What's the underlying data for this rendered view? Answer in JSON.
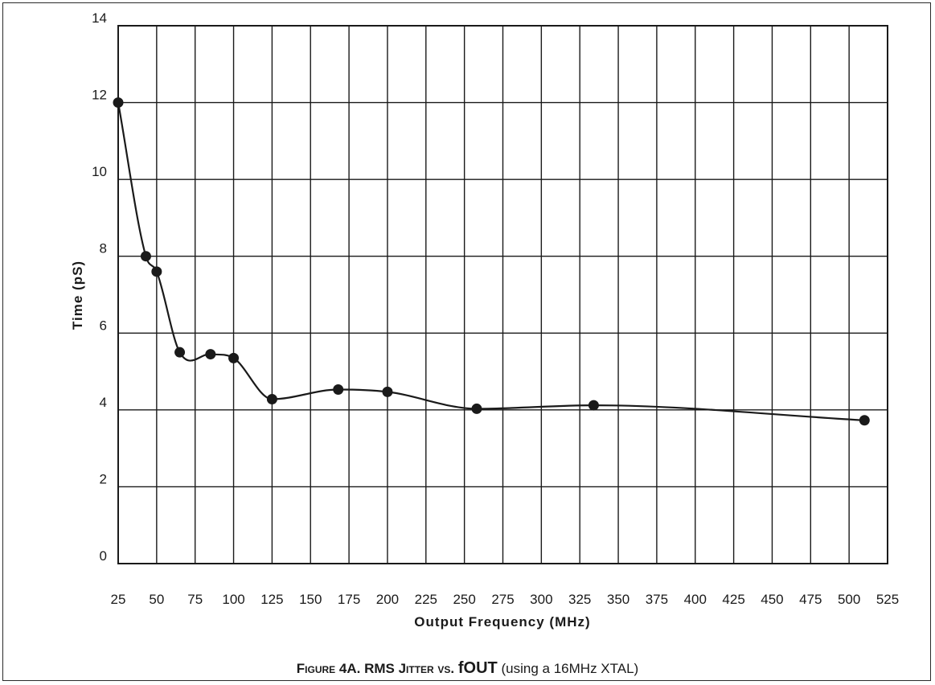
{
  "caption": {
    "part1": "Figure 4A.  RMS Jitter vs.",
    "part2": "fOUT",
    "part3": "(using a 16MHz XTAL)"
  },
  "chart_data": {
    "type": "line",
    "title": "",
    "xlabel": "Output Frequency (MHz)",
    "ylabel": "Time (pS)",
    "xlim": [
      25,
      525
    ],
    "ylim": [
      0,
      14
    ],
    "x_ticks": [
      25,
      50,
      75,
      100,
      125,
      150,
      175,
      200,
      225,
      250,
      275,
      300,
      325,
      350,
      375,
      400,
      425,
      450,
      475,
      500,
      525
    ],
    "y_ticks": [
      0,
      2,
      4,
      6,
      8,
      10,
      12,
      14
    ],
    "grid": true,
    "smooth": true,
    "series": [
      {
        "color": "#1a1a1a",
        "x": [
          25,
          43,
          50,
          65,
          85,
          100,
          125,
          168,
          200,
          258,
          334,
          510
        ],
        "y": [
          12.0,
          8.0,
          7.6,
          5.5,
          5.45,
          5.35,
          4.28,
          4.53,
          4.47,
          4.03,
          4.12,
          3.73
        ]
      }
    ]
  }
}
